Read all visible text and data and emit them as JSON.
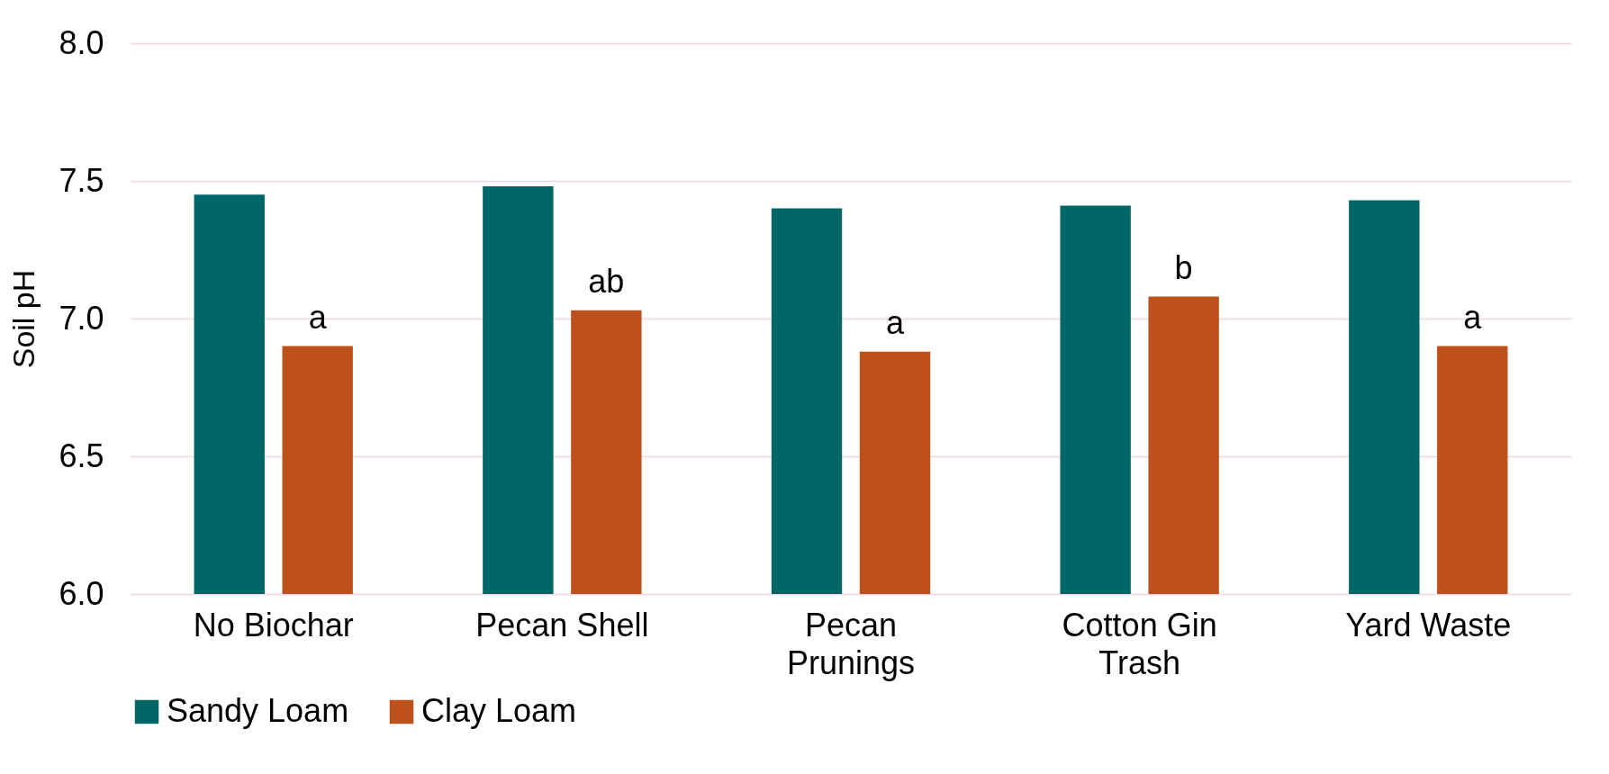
{
  "chart_data": {
    "type": "bar",
    "ylabel": "Soil pH",
    "categories": [
      "No Biochar",
      "Pecan Shell",
      "Pecan Prunings",
      "Cotton Gin Trash",
      "Yard Waste"
    ],
    "series": [
      {
        "name": "Sandy Loam",
        "color": "#006666",
        "values": [
          7.45,
          7.48,
          7.4,
          7.41,
          7.43
        ]
      },
      {
        "name": "Clay Loam",
        "color": "#be501b",
        "values": [
          6.9,
          7.03,
          6.88,
          7.08,
          6.9
        ]
      }
    ],
    "ylim": [
      6.0,
      8.0
    ],
    "yticks": [
      {
        "value": 6.0,
        "label": "6.0"
      },
      {
        "value": 6.5,
        "label": "6.5"
      },
      {
        "value": 7.0,
        "label": "7.0"
      },
      {
        "value": 7.5,
        "label": "7.5"
      },
      {
        "value": 8.0,
        "label": "8.0"
      }
    ],
    "grid": "y",
    "legend": "bottom",
    "annotations": [
      "a",
      "ab",
      "a",
      "b",
      "a"
    ]
  }
}
